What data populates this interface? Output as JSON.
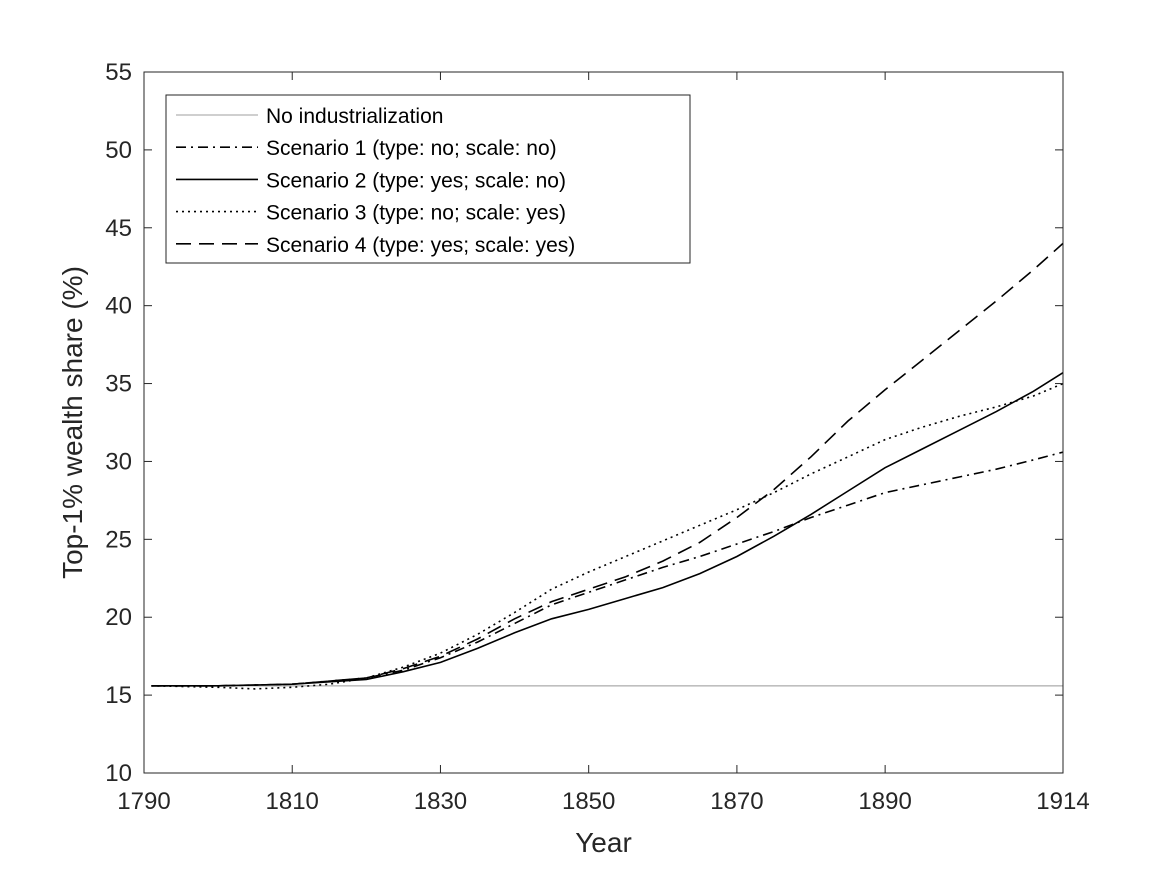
{
  "chart_data": {
    "type": "line",
    "title": "",
    "xlabel": "Year",
    "ylabel": "Top-1% wealth share (%)",
    "xlim": [
      1790,
      1914
    ],
    "ylim": [
      10,
      55
    ],
    "xticks": [
      1790,
      1810,
      1830,
      1850,
      1870,
      1890,
      1914
    ],
    "yticks": [
      10,
      15,
      20,
      25,
      30,
      35,
      40,
      45,
      50,
      55
    ],
    "grid": false,
    "legend_position": "top-left",
    "series": [
      {
        "name": "No industrialization",
        "color": "#bfbfbf",
        "dash": "solid",
        "x": [
          1791,
          1914
        ],
        "y": [
          15.6,
          15.6
        ]
      },
      {
        "name": "Scenario 1 (type: no;  scale: no)",
        "color": "#000000",
        "dash": "dashdot",
        "x": [
          1791,
          1800,
          1810,
          1820,
          1825,
          1830,
          1835,
          1840,
          1845,
          1850,
          1855,
          1860,
          1865,
          1870,
          1875,
          1880,
          1885,
          1890,
          1895,
          1900,
          1905,
          1910,
          1914
        ],
        "y": [
          15.6,
          15.6,
          15.7,
          16.1,
          16.6,
          17.4,
          18.4,
          19.6,
          20.8,
          21.6,
          22.4,
          23.2,
          23.9,
          24.7,
          25.5,
          26.4,
          27.2,
          28.0,
          28.5,
          29.0,
          29.5,
          30.1,
          30.6
        ]
      },
      {
        "name": "Scenario 2 (type: yes; scale: no)",
        "color": "#000000",
        "dash": "solid",
        "x": [
          1791,
          1800,
          1810,
          1820,
          1825,
          1830,
          1835,
          1840,
          1845,
          1850,
          1855,
          1860,
          1865,
          1870,
          1875,
          1880,
          1885,
          1890,
          1895,
          1900,
          1905,
          1910,
          1914
        ],
        "y": [
          15.6,
          15.6,
          15.7,
          16.0,
          16.5,
          17.1,
          18.0,
          19.0,
          19.9,
          20.5,
          21.2,
          21.9,
          22.8,
          23.9,
          25.2,
          26.6,
          28.1,
          29.6,
          30.8,
          32.0,
          33.2,
          34.5,
          35.7
        ]
      },
      {
        "name": "Scenario 3 (type: no;  scale: yes)",
        "color": "#000000",
        "dash": "dotted",
        "x": [
          1791,
          1800,
          1805,
          1810,
          1815,
          1820,
          1825,
          1830,
          1835,
          1840,
          1845,
          1850,
          1855,
          1860,
          1865,
          1870,
          1875,
          1880,
          1885,
          1890,
          1895,
          1900,
          1905,
          1910,
          1914
        ],
        "y": [
          15.6,
          15.5,
          15.4,
          15.5,
          15.7,
          16.1,
          16.8,
          17.7,
          18.9,
          20.3,
          21.8,
          22.9,
          23.9,
          24.9,
          25.9,
          26.9,
          28.0,
          29.2,
          30.3,
          31.4,
          32.2,
          32.9,
          33.5,
          34.2,
          35.0
        ]
      },
      {
        "name": "Scenario 4 (type: yes; scale: yes)",
        "color": "#000000",
        "dash": "dashed",
        "x": [
          1791,
          1800,
          1810,
          1820,
          1825,
          1830,
          1835,
          1840,
          1845,
          1850,
          1855,
          1860,
          1865,
          1870,
          1875,
          1880,
          1885,
          1890,
          1895,
          1900,
          1905,
          1910,
          1914
        ],
        "y": [
          15.6,
          15.6,
          15.7,
          16.1,
          16.7,
          17.5,
          18.6,
          19.9,
          21.0,
          21.8,
          22.6,
          23.6,
          24.8,
          26.4,
          28.2,
          30.3,
          32.6,
          34.6,
          36.5,
          38.4,
          40.3,
          42.3,
          44.0
        ]
      }
    ]
  }
}
